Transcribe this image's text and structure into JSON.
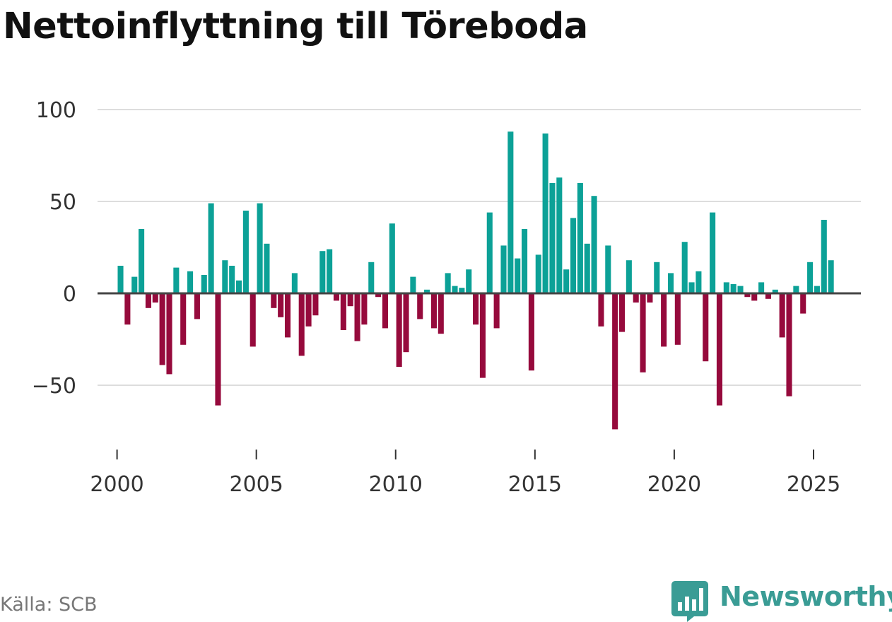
{
  "header": {
    "title": "Nettoinflyttning till Töreboda"
  },
  "footer": {
    "source": "Källa: SCB",
    "brand": "Newsworthy"
  },
  "colors": {
    "positive": "#0ca197",
    "negative": "#960a3c",
    "grid": "#dddddd",
    "zero": "#444444",
    "brand": "#3a9c95"
  },
  "icons": {
    "brand_logo": "bar-chart-speech-bubble-icon"
  },
  "chart_data": {
    "type": "bar",
    "title": "Nettoinflyttning till Töreboda",
    "xlabel": "",
    "ylabel": "",
    "xlim": [
      1999.3,
      2026.7
    ],
    "ylim": [
      -80,
      105
    ],
    "yticks": [
      -50,
      0,
      50,
      100
    ],
    "ytick_labels": [
      "−50",
      "0",
      "50",
      "100"
    ],
    "xticks": [
      2000,
      2005,
      2010,
      2015,
      2020,
      2025
    ],
    "xtick_labels": [
      "2000",
      "2005",
      "2010",
      "2015",
      "2020",
      "2025"
    ],
    "grid": true,
    "period_unit": "quarter",
    "start": "2000Q1",
    "values": [
      15,
      -17,
      9,
      35,
      -8,
      -5,
      -39,
      -44,
      14,
      -28,
      12,
      -14,
      10,
      49,
      -61,
      18,
      15,
      7,
      45,
      -29,
      49,
      27,
      -8,
      -13,
      -24,
      11,
      -34,
      -18,
      -12,
      23,
      24,
      -4,
      -20,
      -7,
      -26,
      -17,
      17,
      -2,
      -19,
      38,
      -40,
      -32,
      9,
      -14,
      2,
      -19,
      -22,
      11,
      4,
      3,
      13,
      -17,
      -46,
      44,
      -19,
      26,
      88,
      19,
      35,
      -42,
      21,
      87,
      60,
      63,
      13,
      41,
      60,
      27,
      53,
      -18,
      26,
      -74,
      -21,
      18,
      -5,
      -43,
      -5,
      17,
      -29,
      11,
      -28,
      28,
      6,
      12,
      -37,
      44,
      -61,
      6,
      5,
      4,
      -2,
      -4,
      6,
      -3,
      2,
      -24,
      -56,
      4,
      -11,
      17,
      4,
      40,
      18
    ]
  }
}
